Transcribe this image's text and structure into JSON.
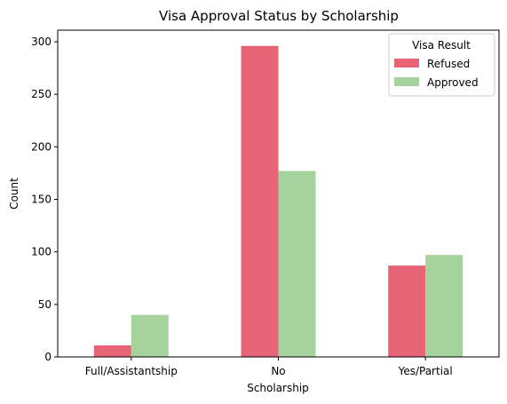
{
  "chart_data": {
    "type": "bar",
    "title": "Visa Approval Status by Scholarship",
    "xlabel": "Scholarship",
    "ylabel": "Count",
    "categories": [
      "Full/Assistantship",
      "No",
      "Yes/Partial"
    ],
    "series": [
      {
        "name": "Refused",
        "values": [
          11,
          296,
          87
        ],
        "color": "#e66476"
      },
      {
        "name": "Approved",
        "values": [
          40,
          177,
          97
        ],
        "color": "#a6d39d"
      }
    ],
    "ylim": [
      0,
      311
    ],
    "yticks": [
      "0",
      "50",
      "100",
      "150",
      "200",
      "250",
      "300"
    ],
    "legend": {
      "title": "Visa Result",
      "placement": "top-right"
    },
    "grid": false
  }
}
